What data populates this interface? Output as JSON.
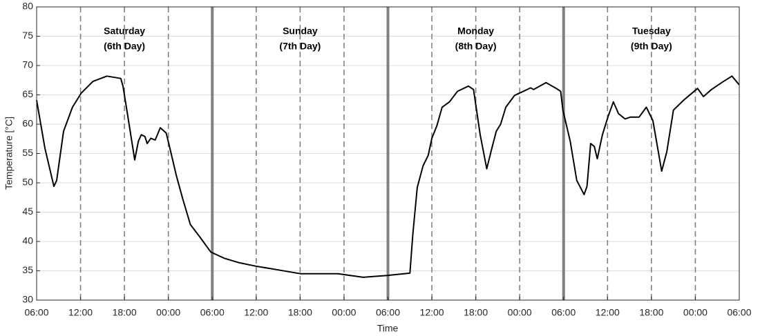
{
  "chart_data": {
    "type": "line",
    "x_label": "Time",
    "y_label": "Temperature [°C]",
    "days": [
      {
        "title": "Saturday",
        "subtitle": "(6th Day)"
      },
      {
        "title": "Sunday",
        "subtitle": "(7th Day)"
      },
      {
        "title": "Monday",
        "subtitle": "(8th Day)"
      },
      {
        "title": "Tuesday",
        "subtitle": "(9th Day)"
      }
    ],
    "xlim": [
      0,
      96
    ],
    "xticks": [
      {
        "value": 0,
        "label": "06:00"
      },
      {
        "value": 6,
        "label": "12:00"
      },
      {
        "value": 12,
        "label": "18:00"
      },
      {
        "value": 18,
        "label": "00:00"
      },
      {
        "value": 24,
        "label": "06:00"
      },
      {
        "value": 30,
        "label": "12:00"
      },
      {
        "value": 36,
        "label": "18:00"
      },
      {
        "value": 42,
        "label": "00:00"
      },
      {
        "value": 48,
        "label": "06:00"
      },
      {
        "value": 54,
        "label": "12:00"
      },
      {
        "value": 60,
        "label": "18:00"
      },
      {
        "value": 66,
        "label": "00:00"
      },
      {
        "value": 72,
        "label": "06:00"
      },
      {
        "value": 78,
        "label": "12:00"
      },
      {
        "value": 84,
        "label": "18:00"
      },
      {
        "value": 90,
        "label": "00:00"
      },
      {
        "value": 96,
        "label": "06:00"
      }
    ],
    "ylim": [
      30,
      80
    ],
    "yticks": [
      30,
      35,
      40,
      45,
      50,
      55,
      60,
      65,
      70,
      75,
      80
    ],
    "grid": true,
    "color": "#000000",
    "x": [
      0,
      1.13,
      2.36,
      2.74,
      3.68,
      4.9,
      6.1,
      7.7,
      9.6,
      11.5,
      11.8,
      12.4,
      13.4,
      13.9,
      14.3,
      14.8,
      15.1,
      15.6,
      16.2,
      16.9,
      17.7,
      18.1,
      19.1,
      20.0,
      21.0,
      22.4,
      23.8,
      25.7,
      27.6,
      29.9,
      32.8,
      36.1,
      41.2,
      44.6,
      47.9,
      51.0,
      51.4,
      52.0,
      52.8,
      53.5,
      54.0,
      54.7,
      55.4,
      56.4,
      57.5,
      59.0,
      59.7,
      60.6,
      61.5,
      62.2,
      62.8,
      63.4,
      64.1,
      65.3,
      67.5,
      67.9,
      69.6,
      71.0,
      71.6,
      71.9,
      72.9,
      73.8,
      74.8,
      75.2,
      75.7,
      76.2,
      76.6,
      77.3,
      78.1,
      78.8,
      79.5,
      80.4,
      81.1,
      82.3,
      83.3,
      84.2,
      85.4,
      86.1,
      87.0,
      88.4,
      90.3,
      91.1,
      92.2,
      93.6,
      95.0,
      96.0
    ],
    "values": [
      64.1,
      55.9,
      49.4,
      50.4,
      58.8,
      62.9,
      65.3,
      67.3,
      68.2,
      67.8,
      66.5,
      61.8,
      53.9,
      57.1,
      58.2,
      57.9,
      56.7,
      57.6,
      57.3,
      59.4,
      58.5,
      56.5,
      51.2,
      47.1,
      42.9,
      40.6,
      38.2,
      37.1,
      36.4,
      35.8,
      35.2,
      34.5,
      34.5,
      33.9,
      34.2,
      34.6,
      41.2,
      49.2,
      52.9,
      54.7,
      57.6,
      59.8,
      62.9,
      63.8,
      65.6,
      66.5,
      65.9,
      58.2,
      52.4,
      55.9,
      58.8,
      60.0,
      62.9,
      64.9,
      66.2,
      65.9,
      67.1,
      66.1,
      65.6,
      62.4,
      57.1,
      50.4,
      48.0,
      49.4,
      56.7,
      56.2,
      54.1,
      58.2,
      61.4,
      63.8,
      61.8,
      60.9,
      61.2,
      61.2,
      62.9,
      60.6,
      52.0,
      55.3,
      62.4,
      64.1,
      66.1,
      64.7,
      65.9,
      67.1,
      68.2,
      66.7
    ]
  }
}
